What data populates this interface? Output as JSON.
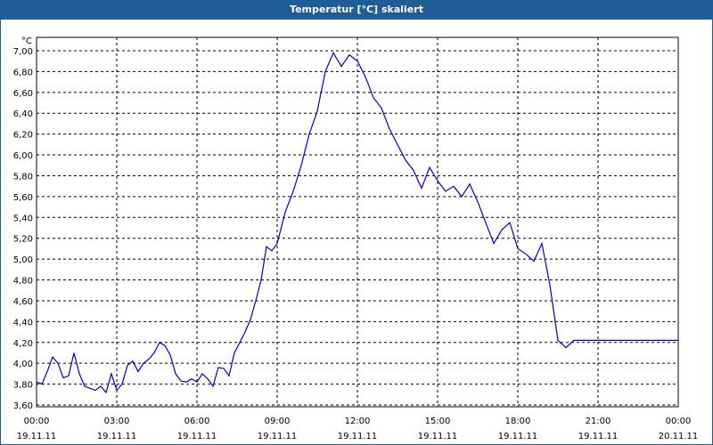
{
  "window": {
    "title": "Temperatur [°C] skaliert"
  },
  "colors": {
    "titlebar": "#1e5d97",
    "line": "#0000cc",
    "grid": "#000000"
  },
  "chart_data": {
    "type": "line",
    "title": "Temperatur [°C] skaliert",
    "ylabel": "°C",
    "xlabel": "",
    "ylim": [
      3.6,
      7.0
    ],
    "xlim": [
      0,
      24
    ],
    "grid": true,
    "y_ticks": [
      "3,60",
      "3,80",
      "4,00",
      "4,20",
      "4,40",
      "4,60",
      "4,80",
      "5,00",
      "5,20",
      "5,40",
      "5,60",
      "5,80",
      "6,00",
      "6,20",
      "6,40",
      "6,60",
      "6,80",
      "7,00"
    ],
    "x_ticks": [
      {
        "time": "00:00",
        "date": "19.11.11"
      },
      {
        "time": "03:00",
        "date": "19.11.11"
      },
      {
        "time": "06:00",
        "date": "19.11.11"
      },
      {
        "time": "09:00",
        "date": "19.11.11"
      },
      {
        "time": "12:00",
        "date": "19.11.11"
      },
      {
        "time": "15:00",
        "date": "19.11.11"
      },
      {
        "time": "18:00",
        "date": "19.11.11"
      },
      {
        "time": "21:00",
        "date": "19.11.11"
      },
      {
        "time": "00:00",
        "date": "20.11.11"
      }
    ],
    "series": [
      {
        "x": [
          0.0,
          0.2,
          0.4,
          0.6,
          0.8,
          1.0,
          1.2,
          1.4,
          1.6,
          1.8,
          2.0,
          2.2,
          2.4,
          2.6,
          2.8,
          3.0,
          3.2,
          3.4,
          3.6,
          3.8,
          4.0,
          4.2,
          4.4,
          4.6,
          4.8,
          5.0,
          5.2,
          5.4,
          5.6,
          5.8,
          6.0,
          6.2,
          6.4,
          6.6,
          6.8,
          7.0,
          7.2,
          7.4,
          7.6,
          7.8,
          8.0,
          8.2,
          8.4,
          8.6,
          8.8,
          9.0,
          9.3,
          9.6,
          9.9,
          10.2,
          10.5,
          10.8,
          11.1,
          11.4,
          11.7,
          12.0,
          12.3,
          12.6,
          12.9,
          13.2,
          13.5,
          13.8,
          14.1,
          14.4,
          14.7,
          15.0,
          15.3,
          15.6,
          15.9,
          16.2,
          16.5,
          16.8,
          17.1,
          17.4,
          17.7,
          18.0,
          18.3,
          18.6,
          18.9,
          19.2,
          19.5,
          19.8,
          20.1,
          20.4,
          20.7,
          21.0,
          21.3,
          21.6,
          21.9,
          22.2,
          22.5,
          22.8,
          23.1,
          23.4,
          23.7,
          24.0
        ],
        "values": [
          3.82,
          3.8,
          3.92,
          4.06,
          4.0,
          3.86,
          3.88,
          4.1,
          3.9,
          3.78,
          3.76,
          3.74,
          3.78,
          3.72,
          3.9,
          3.74,
          3.8,
          3.98,
          4.02,
          3.92,
          4.0,
          4.04,
          4.1,
          4.2,
          4.17,
          4.08,
          3.9,
          3.83,
          3.82,
          3.85,
          3.82,
          3.9,
          3.85,
          3.78,
          3.96,
          3.95,
          3.88,
          4.1,
          4.2,
          4.3,
          4.42,
          4.6,
          4.8,
          5.12,
          5.08,
          5.15,
          5.45,
          5.65,
          5.9,
          6.2,
          6.42,
          6.8,
          6.98,
          6.85,
          6.96,
          6.9,
          6.75,
          6.55,
          6.45,
          6.25,
          6.1,
          5.95,
          5.85,
          5.68,
          5.88,
          5.75,
          5.65,
          5.7,
          5.6,
          5.72,
          5.55,
          5.35,
          5.15,
          5.28,
          5.35,
          5.1,
          5.05,
          4.98,
          5.15,
          4.75,
          4.22,
          4.15,
          4.22,
          4.22,
          4.22,
          4.22,
          4.22,
          4.22,
          4.22,
          4.22,
          4.22,
          4.22,
          4.22,
          4.22,
          4.22,
          4.22
        ]
      }
    ]
  }
}
